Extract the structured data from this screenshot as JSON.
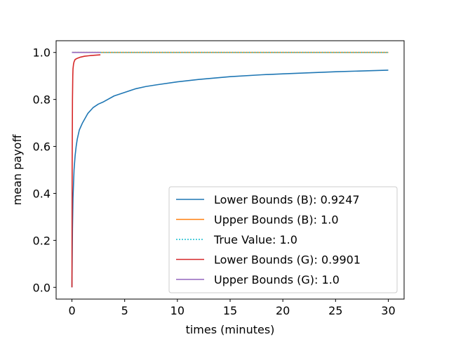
{
  "chart_data": {
    "type": "line",
    "title": "",
    "xlabel": "times (minutes)",
    "ylabel": "mean payoff",
    "xlim": [
      -1.5,
      31.5
    ],
    "ylim": [
      -0.05,
      1.05
    ],
    "xticks": [
      0,
      5,
      10,
      15,
      20,
      25,
      30
    ],
    "yticks": [
      0.0,
      0.2,
      0.4,
      0.6,
      0.8,
      1.0
    ],
    "xtick_labels": [
      "0",
      "5",
      "10",
      "15",
      "20",
      "25",
      "30"
    ],
    "ytick_labels": [
      "0.0",
      "0.2",
      "0.4",
      "0.6",
      "0.8",
      "1.0"
    ],
    "grid": false,
    "legend_position": "lower-right",
    "series": [
      {
        "name": "Lower Bounds (B): 0.9247",
        "color": "#1f77b4",
        "style": "solid",
        "x": [
          0,
          0.05,
          0.1,
          0.2,
          0.3,
          0.4,
          0.5,
          0.7,
          1.0,
          1.5,
          2.0,
          2.5,
          3,
          4,
          5,
          6,
          7,
          8,
          10,
          12,
          15,
          18,
          20,
          25,
          30
        ],
        "y": [
          0.0,
          0.25,
          0.38,
          0.5,
          0.56,
          0.6,
          0.63,
          0.67,
          0.7,
          0.74,
          0.765,
          0.78,
          0.79,
          0.815,
          0.83,
          0.845,
          0.855,
          0.862,
          0.875,
          0.885,
          0.897,
          0.905,
          0.909,
          0.918,
          0.9247
        ]
      },
      {
        "name": "Upper Bounds (B): 1.0",
        "color": "#ff7f0e",
        "style": "solid",
        "x": [
          0,
          30
        ],
        "y": [
          1.0,
          1.0
        ]
      },
      {
        "name": "True Value: 1.0",
        "color": "#17becf",
        "style": "dotted",
        "x": [
          0,
          30
        ],
        "y": [
          1.0,
          1.0
        ]
      },
      {
        "name": "Lower Bounds (G): 0.9901",
        "color": "#d62728",
        "style": "solid",
        "x": [
          0,
          0.02,
          0.05,
          0.08,
          0.1,
          0.15,
          0.2,
          0.3,
          0.5,
          0.8,
          1.2,
          1.8,
          2.7
        ],
        "y": [
          0.0,
          0.5,
          0.8,
          0.9,
          0.93,
          0.95,
          0.96,
          0.97,
          0.975,
          0.98,
          0.984,
          0.987,
          0.9901
        ]
      },
      {
        "name": "Upper Bounds (G): 1.0",
        "color": "#9467bd",
        "style": "solid",
        "x": [
          0,
          2.7
        ],
        "y": [
          1.0,
          1.0
        ]
      }
    ]
  }
}
